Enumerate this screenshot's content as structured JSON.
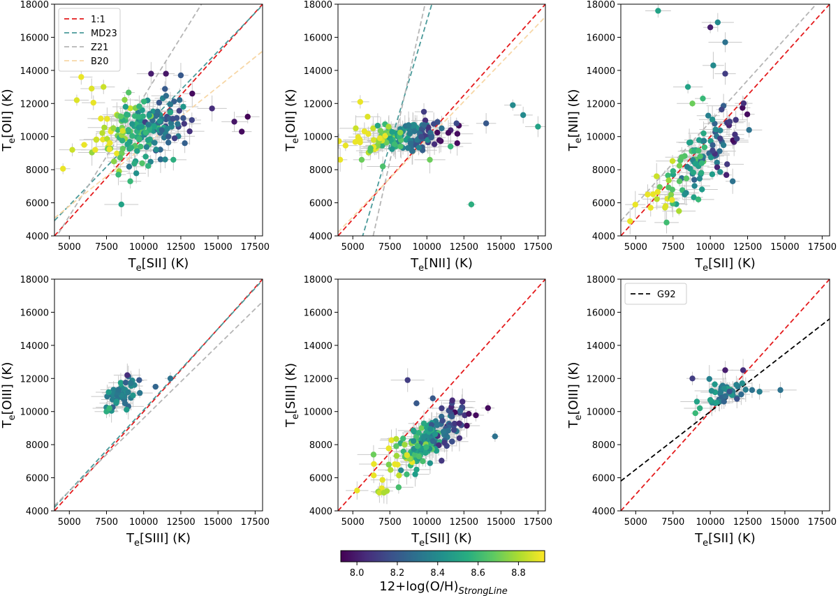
{
  "figure": {
    "colorbar": {
      "label": "12+log(O/H)",
      "label_sub": "StrongLine",
      "range": [
        7.92,
        8.93
      ],
      "ticks": [
        "8.0",
        "8.2",
        "8.4",
        "8.6",
        "8.8"
      ],
      "tick_values": [
        8.0,
        8.2,
        8.4,
        8.6,
        8.8
      ],
      "colormap": "viridis"
    },
    "colors": {
      "one_to_one": "#e41a1c",
      "md23": "#4a9a9a",
      "z21": "#b5b5b5",
      "b20": "#f7d7a6",
      "g92": "#000000",
      "errorbar": "#c8c8c8"
    }
  },
  "chart_data": [
    {
      "type": "scatter",
      "panel": "top-left",
      "xlabel_main": "T",
      "xlabel_sub": "e",
      "xlabel_ion": "[SII] (K)",
      "ylabel_main": "T",
      "ylabel_sub": "e",
      "ylabel_ion": "[OII] (K)",
      "xlim": [
        4000,
        18000
      ],
      "ylim": [
        4000,
        18000
      ],
      "xticks": [
        "5000",
        "7500",
        "10000",
        "12500",
        "15000",
        "17500"
      ],
      "yticks": [
        "4000",
        "6000",
        "8000",
        "10000",
        "12000",
        "14000",
        "16000",
        "18000"
      ],
      "legend": {
        "position": "top-left",
        "entries": [
          "1:1",
          "MD23",
          "Z21",
          "B20"
        ]
      },
      "lines": [
        {
          "name": "1:1",
          "style": "one_to_one",
          "slope": 1.0,
          "intercept": 0
        },
        {
          "name": "MD23",
          "style": "md23",
          "slope": 0.93,
          "intercept": 1200
        },
        {
          "name": "Z21",
          "style": "z21",
          "slope": 1.44,
          "intercept": -2000
        },
        {
          "name": "B20",
          "style": "b20",
          "slope": 0.72,
          "intercept": 2200
        }
      ],
      "cluster": {
        "cx": 10000,
        "cy": 10400,
        "sx": 1600,
        "sy": 1000,
        "corr": 0.25,
        "n": 180,
        "zc": 8.5,
        "zs": 0.18,
        "zslope": -1.3
      },
      "extra_points": [
        [
          16600,
          10300,
          7.95
        ],
        [
          16100,
          10900,
          7.98
        ],
        [
          17000,
          11200,
          7.93
        ],
        [
          14600,
          11700,
          8.05
        ],
        [
          8500,
          5900,
          8.5
        ],
        [
          12000,
          8600,
          8.55
        ],
        [
          9100,
          7300,
          8.6
        ],
        [
          5800,
          13600,
          8.9
        ],
        [
          5500,
          12200,
          8.88
        ],
        [
          6500,
          12900,
          8.88
        ],
        [
          7300,
          13000,
          8.85
        ],
        [
          12500,
          13700,
          8.2
        ],
        [
          11500,
          13800,
          7.98
        ],
        [
          10500,
          13800,
          8.0
        ],
        [
          5200,
          9200,
          8.85
        ],
        [
          6000,
          9500,
          8.9
        ],
        [
          8000,
          8500,
          8.75
        ],
        [
          8300,
          7700,
          8.6
        ]
      ]
    },
    {
      "type": "scatter",
      "panel": "top-middle",
      "xlabel_main": "T",
      "xlabel_sub": "e",
      "xlabel_ion": "[NII] (K)",
      "ylabel_main": "T",
      "ylabel_sub": "e",
      "ylabel_ion": "[OII] (K)",
      "xlim": [
        4000,
        18000
      ],
      "ylim": [
        4000,
        18000
      ],
      "xticks": [
        "5000",
        "7500",
        "10000",
        "12500",
        "15000",
        "17500"
      ],
      "yticks": [
        "4000",
        "6000",
        "8000",
        "10000",
        "12000",
        "14000",
        "16000",
        "18000"
      ],
      "lines": [
        {
          "name": "1:1",
          "style": "one_to_one",
          "slope": 1.0,
          "intercept": 0
        },
        {
          "name": "MD23",
          "style": "md23",
          "slope": 3.0,
          "intercept": -13000
        },
        {
          "name": "Z21",
          "style": "z21",
          "slope": 4.0,
          "intercept": -21500
        },
        {
          "name": "B20",
          "style": "b20",
          "slope": 0.93,
          "intercept": 500
        }
      ],
      "cluster": {
        "cx": 8000,
        "cy": 10000,
        "sx": 1700,
        "sy": 450,
        "corr": 0.3,
        "n": 140,
        "zc": 8.55,
        "zs": 0.17,
        "zslope": -1.8
      },
      "extra_points": [
        [
          13000,
          5900,
          8.55
        ],
        [
          17500,
          10600,
          8.5
        ],
        [
          15800,
          11900,
          8.4
        ],
        [
          16500,
          11300,
          8.4
        ],
        [
          14000,
          10800,
          8.2
        ],
        [
          12000,
          10800,
          8.15
        ],
        [
          10200,
          8600,
          8.7
        ],
        [
          11600,
          9400,
          8.6
        ],
        [
          5500,
          12100,
          8.9
        ],
        [
          6000,
          11200,
          8.88
        ],
        [
          5200,
          10500,
          8.85
        ],
        [
          5600,
          8600,
          8.7
        ],
        [
          6200,
          9300,
          8.65
        ],
        [
          9800,
          11500,
          8.1
        ],
        [
          11000,
          10500,
          8.3
        ]
      ]
    },
    {
      "type": "scatter",
      "panel": "top-right",
      "xlabel_main": "T",
      "xlabel_sub": "e",
      "xlabel_ion": "[SII] (K)",
      "ylabel_main": "T",
      "ylabel_sub": "e",
      "ylabel_ion": "[NII] (K)",
      "xlim": [
        4000,
        18000
      ],
      "ylim": [
        4000,
        18000
      ],
      "xticks": [
        "5000",
        "7500",
        "10000",
        "12500",
        "15000",
        "17500"
      ],
      "yticks": [
        "4000",
        "6000",
        "8000",
        "10000",
        "12000",
        "14000",
        "16000",
        "18000"
      ],
      "lines": [
        {
          "name": "1:1",
          "style": "one_to_one",
          "slope": 1.0,
          "intercept": 0
        },
        {
          "name": "Z21",
          "style": "z21",
          "slope": 1.0,
          "intercept": 900
        }
      ],
      "cluster": {
        "cx": 8900,
        "cy": 8200,
        "sx": 1500,
        "sy": 1600,
        "corr": 0.8,
        "n": 110,
        "zc": 8.5,
        "zs": 0.2,
        "zslope": -1.6
      },
      "extra_points": [
        [
          6500,
          17600,
          8.5
        ],
        [
          10000,
          16600,
          8.0
        ],
        [
          10500,
          16900,
          8.4
        ],
        [
          11000,
          15700,
          8.3
        ],
        [
          10200,
          14300,
          8.4
        ],
        [
          8500,
          13000,
          8.5
        ],
        [
          11000,
          13800,
          8.1
        ],
        [
          9500,
          12300,
          8.6
        ],
        [
          6400,
          7600,
          8.85
        ],
        [
          5800,
          6500,
          8.9
        ],
        [
          7000,
          5800,
          8.88
        ],
        [
          6000,
          5700,
          8.9
        ],
        [
          7900,
          5500,
          8.8
        ],
        [
          9200,
          6200,
          8.6
        ],
        [
          11500,
          7300,
          8.3
        ],
        [
          11300,
          10900,
          8.1
        ],
        [
          12600,
          10400,
          8.3
        ],
        [
          8800,
          12000,
          8.7
        ]
      ]
    },
    {
      "type": "scatter",
      "panel": "bottom-left",
      "xlabel_main": "T",
      "xlabel_sub": "e",
      "xlabel_ion": "[SIII] (K)",
      "ylabel_main": "T",
      "ylabel_sub": "e",
      "ylabel_ion": "[OIII] (K)",
      "xlim": [
        4000,
        18000
      ],
      "ylim": [
        4000,
        18000
      ],
      "xticks": [
        "5000",
        "7500",
        "10000",
        "12500",
        "15000",
        "17500"
      ],
      "yticks": [
        "4000",
        "6000",
        "8000",
        "10000",
        "12000",
        "14000",
        "16000",
        "18000"
      ],
      "lines": [
        {
          "name": "1:1",
          "style": "one_to_one",
          "slope": 1.0,
          "intercept": 0
        },
        {
          "name": "MD23",
          "style": "md23",
          "slope": 0.98,
          "intercept": 300
        },
        {
          "name": "Z21",
          "style": "z21",
          "slope": 0.88,
          "intercept": 800
        }
      ],
      "cluster": {
        "cx": 8600,
        "cy": 11100,
        "sx": 500,
        "sy": 450,
        "corr": 0.4,
        "n": 45,
        "zc": 8.35,
        "zs": 0.12,
        "zslope": 0.0
      },
      "extra_points": [
        [
          11800,
          12000,
          8.3
        ],
        [
          7500,
          10000,
          8.55
        ],
        [
          7700,
          10200,
          8.6
        ],
        [
          8900,
          12200,
          8.05
        ],
        [
          9700,
          11900,
          8.2
        ],
        [
          10800,
          11500,
          8.25
        ]
      ]
    },
    {
      "type": "scatter",
      "panel": "bottom-middle",
      "xlabel_main": "T",
      "xlabel_sub": "e",
      "xlabel_ion": "[SII] (K)",
      "ylabel_main": "T",
      "ylabel_sub": "e",
      "ylabel_ion": "[SIII] (K)",
      "xlim": [
        4000,
        18000
      ],
      "ylim": [
        4000,
        18000
      ],
      "xticks": [
        "5000",
        "7500",
        "10000",
        "12500",
        "15000",
        "17500"
      ],
      "yticks": [
        "4000",
        "6000",
        "8000",
        "10000",
        "12000",
        "14000",
        "16000",
        "18000"
      ],
      "lines": [
        {
          "name": "1:1",
          "style": "one_to_one",
          "slope": 1.0,
          "intercept": 0
        }
      ],
      "cluster": {
        "cx": 10000,
        "cy": 8200,
        "sx": 1500,
        "sy": 1000,
        "corr": 0.8,
        "n": 170,
        "zc": 8.45,
        "zs": 0.2,
        "zslope": -1.6
      },
      "extra_points": [
        [
          8700,
          11900,
          8.1
        ],
        [
          14600,
          8500,
          8.3
        ],
        [
          12400,
          10600,
          8.05
        ],
        [
          6400,
          7400,
          8.7
        ],
        [
          6800,
          5100,
          8.85
        ],
        [
          7300,
          5200,
          8.8
        ],
        [
          7100,
          5100,
          8.8
        ],
        [
          9300,
          10500,
          8.2
        ],
        [
          10400,
          10800,
          8.2
        ],
        [
          11000,
          10200,
          8.1
        ]
      ]
    },
    {
      "type": "scatter",
      "panel": "bottom-right",
      "xlabel_main": "T",
      "xlabel_sub": "e",
      "xlabel_ion": "[SII] (K)",
      "ylabel_main": "T",
      "ylabel_sub": "e",
      "ylabel_ion": "[OIII] (K)",
      "xlim": [
        4000,
        18000
      ],
      "ylim": [
        4000,
        18000
      ],
      "xticks": [
        "5000",
        "7500",
        "10000",
        "12500",
        "15000",
        "17500"
      ],
      "yticks": [
        "4000",
        "6000",
        "8000",
        "10000",
        "12000",
        "14000",
        "16000",
        "18000"
      ],
      "legend": {
        "position": "top-left",
        "entries": [
          "G92"
        ]
      },
      "lines": [
        {
          "name": "1:1",
          "style": "one_to_one",
          "slope": 1.0,
          "intercept": 0
        },
        {
          "name": "G92",
          "style": "g92",
          "slope": 0.7,
          "intercept": 3000
        }
      ],
      "cluster": {
        "cx": 10900,
        "cy": 11100,
        "sx": 650,
        "sy": 450,
        "corr": 0.3,
        "n": 40,
        "zc": 8.35,
        "zs": 0.12,
        "zslope": 0.0
      },
      "extra_points": [
        [
          8800,
          12000,
          8.1
        ],
        [
          14700,
          11300,
          8.3
        ],
        [
          13300,
          11200,
          8.35
        ],
        [
          12800,
          11300,
          8.3
        ],
        [
          12200,
          12500,
          8.05
        ],
        [
          11000,
          12500,
          8.0
        ],
        [
          9100,
          10600,
          8.5
        ],
        [
          9300,
          10200,
          8.55
        ],
        [
          9000,
          9900,
          8.6
        ],
        [
          10000,
          10700,
          8.5
        ]
      ]
    }
  ]
}
